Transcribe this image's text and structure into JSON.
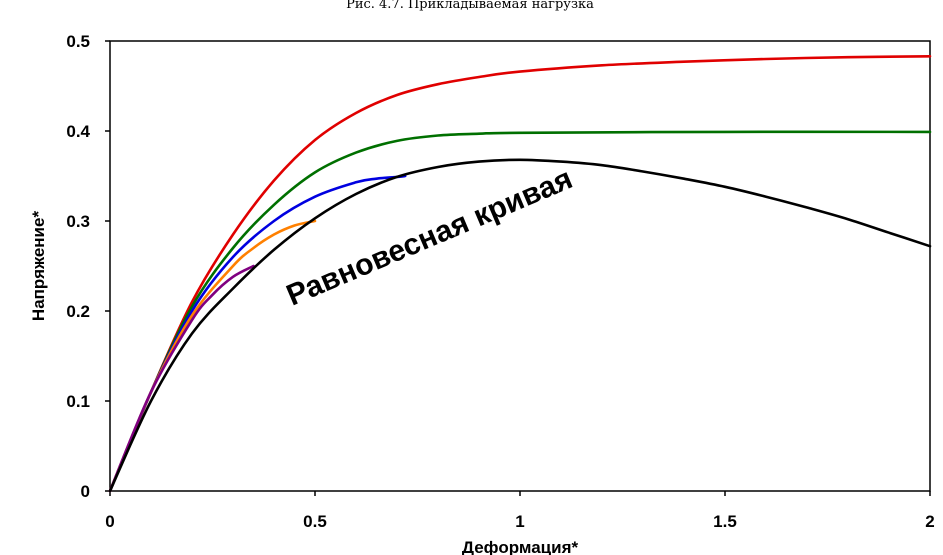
{
  "figure_caption": "Рис. 4.7. Прикладываемая нагрузка",
  "chart_data": {
    "type": "line",
    "title": "",
    "xlabel": "Деформация*",
    "ylabel": "Напряжение*",
    "xlim": [
      0,
      2
    ],
    "ylim": [
      0,
      0.5
    ],
    "x_ticks": [
      "0",
      "0.5",
      "1",
      "1.5",
      "2"
    ],
    "y_ticks": [
      "0",
      "0.1",
      "0.2",
      "0.3",
      "0.4",
      "0.5"
    ],
    "grid": false,
    "legend": "none",
    "annotation": "Равновесная кривая",
    "series": [
      {
        "color": "#e00000",
        "x": [
          0,
          0.1,
          0.2,
          0.3,
          0.4,
          0.5,
          0.6,
          0.7,
          0.8,
          0.9,
          1.0,
          1.2,
          1.4,
          1.6,
          1.8,
          2.0
        ],
        "y": [
          0,
          0.11,
          0.21,
          0.285,
          0.345,
          0.39,
          0.42,
          0.44,
          0.452,
          0.46,
          0.466,
          0.473,
          0.477,
          0.48,
          0.482,
          0.483
        ]
      },
      {
        "color": "#007000",
        "x": [
          0,
          0.1,
          0.2,
          0.3,
          0.4,
          0.5,
          0.6,
          0.7,
          0.8,
          0.9,
          1.0,
          1.5,
          2.0
        ],
        "y": [
          0,
          0.11,
          0.205,
          0.27,
          0.318,
          0.354,
          0.376,
          0.389,
          0.395,
          0.397,
          0.398,
          0.399,
          0.399
        ]
      },
      {
        "color": "#0000e0",
        "x": [
          0,
          0.1,
          0.2,
          0.3,
          0.4,
          0.5,
          0.6,
          0.65,
          0.7,
          0.72
        ],
        "y": [
          0,
          0.11,
          0.2,
          0.26,
          0.3,
          0.327,
          0.343,
          0.347,
          0.349,
          0.35
        ]
      },
      {
        "color": "#ff8000",
        "x": [
          0,
          0.1,
          0.2,
          0.3,
          0.35,
          0.4,
          0.45,
          0.5
        ],
        "y": [
          0,
          0.11,
          0.195,
          0.25,
          0.27,
          0.285,
          0.295,
          0.3
        ]
      },
      {
        "color": "#800080",
        "x": [
          0,
          0.1,
          0.2,
          0.25,
          0.3,
          0.35
        ],
        "y": [
          0,
          0.11,
          0.19,
          0.218,
          0.238,
          0.25
        ]
      },
      {
        "color": "#000000",
        "x": [
          0,
          0.1,
          0.2,
          0.3,
          0.4,
          0.5,
          0.6,
          0.7,
          0.8,
          0.9,
          1.0,
          1.1,
          1.2,
          1.3,
          1.4,
          1.5,
          1.6,
          1.7,
          1.8,
          1.9,
          2.0
        ],
        "y": [
          0,
          0.1,
          0.175,
          0.225,
          0.268,
          0.303,
          0.33,
          0.349,
          0.36,
          0.366,
          0.368,
          0.366,
          0.362,
          0.355,
          0.347,
          0.338,
          0.327,
          0.315,
          0.302,
          0.287,
          0.272
        ]
      }
    ]
  }
}
